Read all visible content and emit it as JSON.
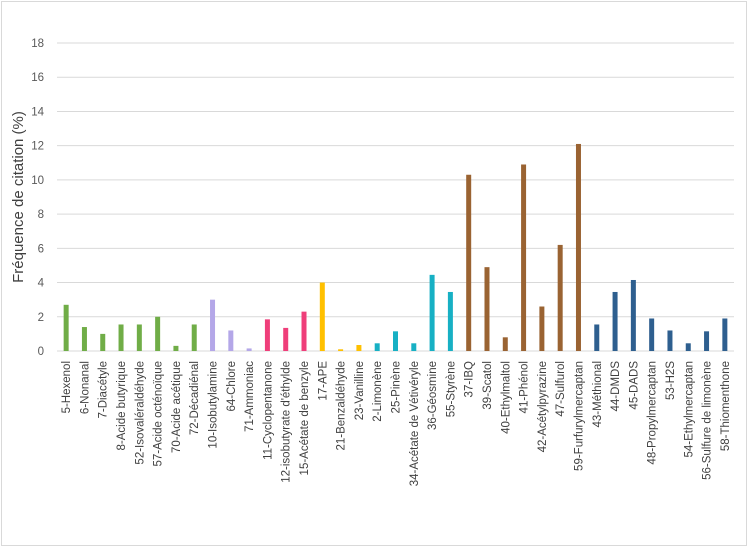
{
  "chart_data": {
    "type": "bar",
    "title": "",
    "xlabel": "",
    "ylabel": "Fréquence de citation (%)",
    "ylim": [
      0,
      18
    ],
    "yticks": [
      0,
      2,
      4,
      6,
      8,
      10,
      12,
      14,
      16,
      18
    ],
    "grid": true,
    "legend": "none",
    "categories": [
      "5-Hexenol",
      "6-Nonanal",
      "7-Diacétyle",
      "8-Acide butyrique",
      "52-Isovaléraldéhyde",
      "57-Acide octénoïque",
      "70-Acide acétique",
      "72-Décadiénal",
      "10-Isobutylamine",
      "64-Chlore",
      "71-Ammoniac",
      "11-Cyclopentanone",
      "12-isobutyrate d'éthylde",
      "15-Acétate de benzyle",
      "17-APE",
      "21-Benzaldéhyde",
      "23-Vanilline",
      "2-Limonène",
      "25-Pinène",
      "34-Acétate de Vétivéryle",
      "36-Géosmine",
      "55-Styrène",
      "37-IBQ",
      "39-Scatol",
      "40-Ethylmaltol",
      "41-Phénol",
      "42-Acétylpyrazine",
      "47-Sulfurol",
      "59-Furfurylmercaptan",
      "43-Méthional",
      "44-DMDS",
      "45-DADS",
      "48-Propylmercaptan",
      "53-H2S",
      "54-Ethylmercaptan",
      "56-Sulfure de limonène",
      "58-Thiomenthone"
    ],
    "values": [
      2.7,
      1.4,
      1.0,
      1.55,
      1.55,
      2.0,
      0.3,
      1.55,
      3.0,
      1.2,
      0.15,
      1.85,
      1.35,
      2.3,
      4.0,
      0.1,
      0.35,
      0.45,
      1.15,
      0.45,
      4.45,
      3.45,
      10.3,
      4.9,
      0.8,
      10.9,
      2.6,
      6.2,
      12.1,
      1.55,
      3.45,
      4.15,
      1.9,
      1.2,
      0.45,
      1.15,
      1.9
    ],
    "colors": [
      "#70ad47",
      "#70ad47",
      "#70ad47",
      "#70ad47",
      "#70ad47",
      "#70ad47",
      "#70ad47",
      "#70ad47",
      "#b4a7e8",
      "#b4a7e8",
      "#b4a7e8",
      "#ef3e7a",
      "#ef3e7a",
      "#ef3e7a",
      "#ffc000",
      "#ffc000",
      "#ffc000",
      "#17b0c4",
      "#17b0c4",
      "#17b0c4",
      "#17b0c4",
      "#17b0c4",
      "#9a6332",
      "#9a6332",
      "#9a6332",
      "#9a6332",
      "#9a6332",
      "#9a6332",
      "#9a6332",
      "#2e5f8f",
      "#2e5f8f",
      "#2e5f8f",
      "#2e5f8f",
      "#2e5f8f",
      "#2e5f8f",
      "#2e5f8f",
      "#2e5f8f"
    ],
    "gridline_color": "#d9d9d9"
  }
}
